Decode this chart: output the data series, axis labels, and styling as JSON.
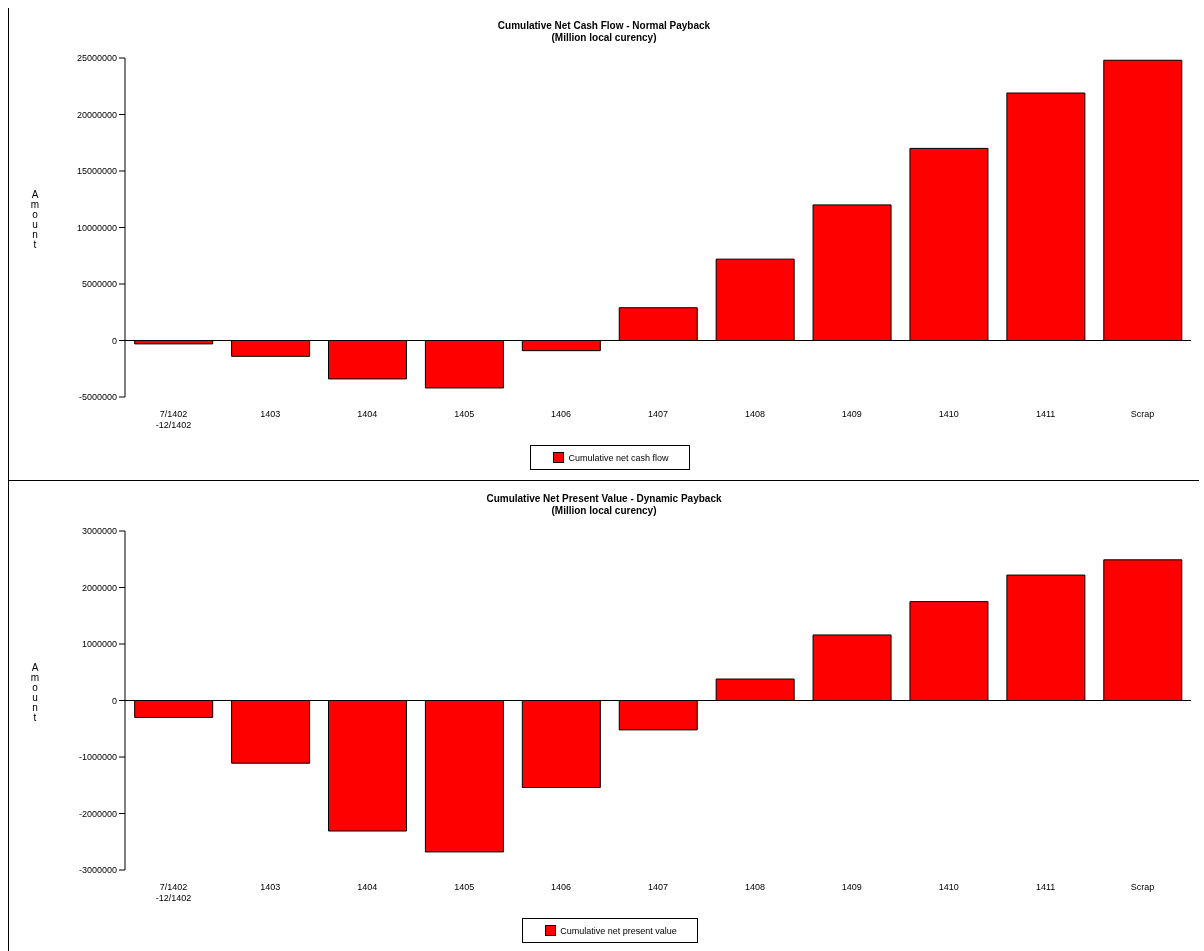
{
  "chart_data": [
    {
      "type": "bar",
      "title": "Cumulative Net Cash Flow - Normal Payback",
      "subtitle": "(Million local curency)",
      "ylabel": "Amount",
      "categories": [
        "7/1402 -12/1402",
        "1403",
        "1404",
        "1405",
        "1406",
        "1407",
        "1408",
        "1409",
        "1410",
        "1411",
        "Scrap"
      ],
      "series": [
        {
          "name": "Cumulative net cash flow",
          "color": "#ff0000",
          "values": [
            -300000,
            -1400000,
            -3400000,
            -4200000,
            -900000,
            2900000,
            7200000,
            12000000,
            17000000,
            21900000,
            24800000
          ]
        }
      ],
      "ylim": [
        -5000000,
        25000000
      ],
      "yticks": [
        -5000000,
        0,
        5000000,
        10000000,
        15000000,
        20000000,
        25000000
      ],
      "legend": "bottom"
    },
    {
      "type": "bar",
      "title": "Cumulative Net Present Value - Dynamic Payback",
      "subtitle": "(Million local curency)",
      "ylabel": "Amount",
      "categories": [
        "7/1402 -12/1402",
        "1403",
        "1404",
        "1405",
        "1406",
        "1407",
        "1408",
        "1409",
        "1410",
        "1411",
        "Scrap"
      ],
      "series": [
        {
          "name": "Cumulative net present value",
          "color": "#ff0000",
          "values": [
            -300000,
            -1110000,
            -2310000,
            -2680000,
            -1540000,
            -520000,
            380000,
            1160000,
            1750000,
            2220000,
            2490000
          ]
        }
      ],
      "ylim": [
        -3000000,
        3000000
      ],
      "yticks": [
        -3000000,
        -2000000,
        -1000000,
        0,
        1000000,
        2000000,
        3000000
      ],
      "legend": "bottom"
    }
  ]
}
